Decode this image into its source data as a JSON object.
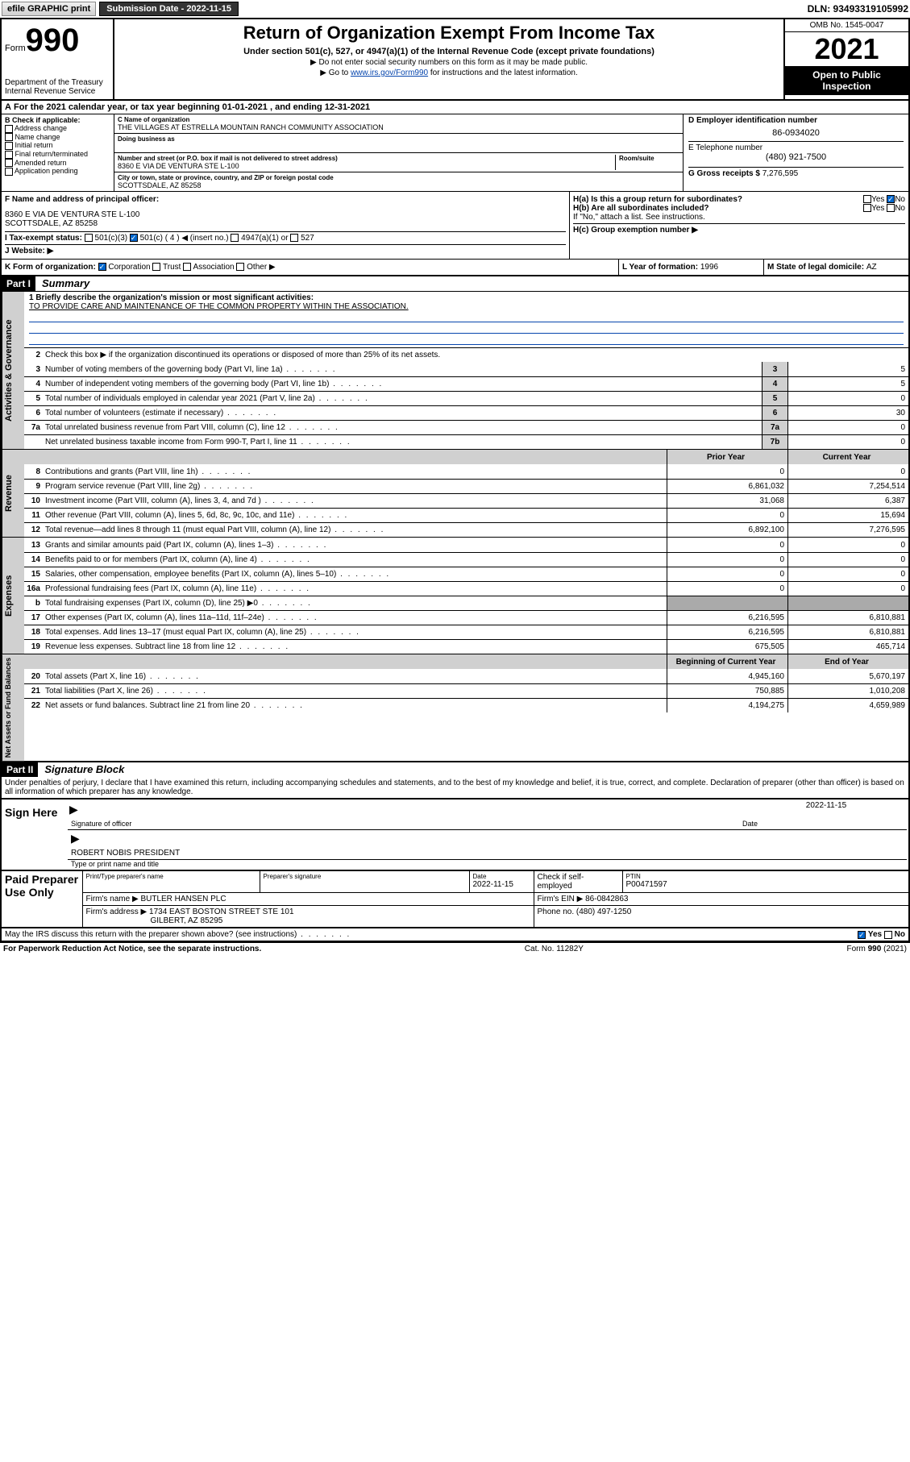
{
  "topbar": {
    "efile": "efile GRAPHIC print",
    "submission_label": "Submission Date - 2022-11-15",
    "dln": "DLN: 93493319105992"
  },
  "header": {
    "form_word": "Form",
    "form_no": "990",
    "dept": "Department of the Treasury",
    "irs": "Internal Revenue Service",
    "title": "Return of Organization Exempt From Income Tax",
    "sub1": "Under section 501(c), 527, or 4947(a)(1) of the Internal Revenue Code (except private foundations)",
    "sub2": "▶ Do not enter social security numbers on this form as it may be made public.",
    "sub3_pre": "▶ Go to ",
    "sub3_link": "www.irs.gov/Form990",
    "sub3_post": " for instructions and the latest information.",
    "omb": "OMB No. 1545-0047",
    "year": "2021",
    "inspect1": "Open to Public",
    "inspect2": "Inspection"
  },
  "sectionA": {
    "text_pre": "For the 2021 calendar year, or tax year beginning ",
    "begin": "01-01-2021",
    "mid": " , and ending ",
    "end": "12-31-2021"
  },
  "colB": {
    "label": "B Check if applicable:",
    "opts": [
      "Address change",
      "Name change",
      "Initial return",
      "Final return/terminated",
      "Amended return",
      "Application pending"
    ]
  },
  "colC": {
    "name_label": "C Name of organization",
    "name": "THE VILLAGES AT ESTRELLA MOUNTAIN RANCH COMMUNITY ASSOCIATION",
    "dba_label": "Doing business as",
    "addr_label": "Number and street (or P.O. box if mail is not delivered to street address)",
    "room_label": "Room/suite",
    "addr": "8360 E VIA DE VENTURA STE L-100",
    "city_label": "City or town, state or province, country, and ZIP or foreign postal code",
    "city": "SCOTTSDALE, AZ  85258"
  },
  "colD": {
    "ein_label": "D Employer identification number",
    "ein": "86-0934020",
    "phone_label": "E Telephone number",
    "phone": "(480) 921-7500",
    "gross_label": "G Gross receipts $ ",
    "gross": "7,276,595"
  },
  "rowF": {
    "label": "F  Name and address of principal officer:",
    "addr1": "8360 E VIA DE VENTURA STE L-100",
    "addr2": "SCOTTSDALE, AZ  85258"
  },
  "rowH": {
    "ha": "H(a)  Is this a group return for subordinates?",
    "yes": "Yes",
    "no": "No",
    "hb": "H(b)  Are all subordinates included?",
    "hb_note": "If \"No,\" attach a list. See instructions.",
    "hc": "H(c)  Group exemption number ▶"
  },
  "rowI": {
    "label": "I   Tax-exempt status:",
    "o1": "501(c)(3)",
    "o2": "501(c) ( 4 ) ◀ (insert no.)",
    "o3": "4947(a)(1) or",
    "o4": "527"
  },
  "rowJ": {
    "label": "J   Website: ▶"
  },
  "rowK": {
    "label": "K Form of organization:",
    "o1": "Corporation",
    "o2": "Trust",
    "o3": "Association",
    "o4": "Other ▶"
  },
  "rowL": {
    "label": "L Year of formation: ",
    "val": "1996"
  },
  "rowM": {
    "label": "M State of legal domicile: ",
    "val": "AZ"
  },
  "part1": {
    "hdr": "Part I",
    "title": "Summary",
    "l1_label": "1  Briefly describe the organization's mission or most significant activities:",
    "l1_text": "TO PROVIDE CARE AND MAINTENANCE OF THE COMMON PROPERTY WITHIN THE ASSOCIATION.",
    "l2": "Check this box ▶        if the organization discontinued its operations or disposed of more than 25% of its net assets.",
    "vtab1": "Activities & Governance",
    "vtab2": "Revenue",
    "vtab3": "Expenses",
    "vtab4": "Net Assets or Fund Balances",
    "prior": "Prior Year",
    "current": "Current Year",
    "begin": "Beginning of Current Year",
    "endyr": "End of Year",
    "lines_gov": [
      {
        "n": "3",
        "t": "Number of voting members of the governing body (Part VI, line 1a)",
        "box": "3",
        "v": "5"
      },
      {
        "n": "4",
        "t": "Number of independent voting members of the governing body (Part VI, line 1b)",
        "box": "4",
        "v": "5"
      },
      {
        "n": "5",
        "t": "Total number of individuals employed in calendar year 2021 (Part V, line 2a)",
        "box": "5",
        "v": "0"
      },
      {
        "n": "6",
        "t": "Total number of volunteers (estimate if necessary)",
        "box": "6",
        "v": "30"
      },
      {
        "n": "7a",
        "t": "Total unrelated business revenue from Part VIII, column (C), line 12",
        "box": "7a",
        "v": "0"
      },
      {
        "n": "",
        "t": "Net unrelated business taxable income from Form 990-T, Part I, line 11",
        "box": "7b",
        "v": "0"
      }
    ],
    "lines_rev": [
      {
        "n": "8",
        "t": "Contributions and grants (Part VIII, line 1h)",
        "p": "0",
        "c": "0"
      },
      {
        "n": "9",
        "t": "Program service revenue (Part VIII, line 2g)",
        "p": "6,861,032",
        "c": "7,254,514"
      },
      {
        "n": "10",
        "t": "Investment income (Part VIII, column (A), lines 3, 4, and 7d )",
        "p": "31,068",
        "c": "6,387"
      },
      {
        "n": "11",
        "t": "Other revenue (Part VIII, column (A), lines 5, 6d, 8c, 9c, 10c, and 11e)",
        "p": "0",
        "c": "15,694"
      },
      {
        "n": "12",
        "t": "Total revenue—add lines 8 through 11 (must equal Part VIII, column (A), line 12)",
        "p": "6,892,100",
        "c": "7,276,595"
      }
    ],
    "lines_exp": [
      {
        "n": "13",
        "t": "Grants and similar amounts paid (Part IX, column (A), lines 1–3)",
        "p": "0",
        "c": "0"
      },
      {
        "n": "14",
        "t": "Benefits paid to or for members (Part IX, column (A), line 4)",
        "p": "0",
        "c": "0"
      },
      {
        "n": "15",
        "t": "Salaries, other compensation, employee benefits (Part IX, column (A), lines 5–10)",
        "p": "0",
        "c": "0"
      },
      {
        "n": "16a",
        "t": "Professional fundraising fees (Part IX, column (A), line 11e)",
        "p": "0",
        "c": "0"
      },
      {
        "n": "b",
        "t": "Total fundraising expenses (Part IX, column (D), line 25) ▶0",
        "p": "",
        "c": "",
        "gray": true
      },
      {
        "n": "17",
        "t": "Other expenses (Part IX, column (A), lines 11a–11d, 11f–24e)",
        "p": "6,216,595",
        "c": "6,810,881"
      },
      {
        "n": "18",
        "t": "Total expenses. Add lines 13–17 (must equal Part IX, column (A), line 25)",
        "p": "6,216,595",
        "c": "6,810,881"
      },
      {
        "n": "19",
        "t": "Revenue less expenses. Subtract line 18 from line 12",
        "p": "675,505",
        "c": "465,714"
      }
    ],
    "lines_net": [
      {
        "n": "20",
        "t": "Total assets (Part X, line 16)",
        "p": "4,945,160",
        "c": "5,670,197"
      },
      {
        "n": "21",
        "t": "Total liabilities (Part X, line 26)",
        "p": "750,885",
        "c": "1,010,208"
      },
      {
        "n": "22",
        "t": "Net assets or fund balances. Subtract line 21 from line 20",
        "p": "4,194,275",
        "c": "4,659,989"
      }
    ]
  },
  "part2": {
    "hdr": "Part II",
    "title": "Signature Block",
    "decl": "Under penalties of perjury, I declare that I have examined this return, including accompanying schedules and statements, and to the best of my knowledge and belief, it is true, correct, and complete. Declaration of preparer (other than officer) is based on all information of which preparer has any knowledge.",
    "sign_here": "Sign Here",
    "sig_officer": "Signature of officer",
    "date_lbl": "Date",
    "date_val": "2022-11-15",
    "officer_name": "ROBERT NOBIS  PRESIDENT",
    "type_name": "Type or print name and title",
    "paid": "Paid Preparer Use Only",
    "prep_name_lbl": "Print/Type preparer's name",
    "prep_sig_lbl": "Preparer's signature",
    "prep_date": "2022-11-15",
    "check_if": "Check        if self-employed",
    "ptin_lbl": "PTIN",
    "ptin": "P00471597",
    "firm_name_lbl": "Firm's name    ▶ ",
    "firm_name": "BUTLER HANSEN PLC",
    "firm_ein_lbl": "Firm's EIN ▶ ",
    "firm_ein": "86-0842863",
    "firm_addr_lbl": "Firm's address ▶ ",
    "firm_addr1": "1734 EAST BOSTON STREET STE 101",
    "firm_addr2": "GILBERT, AZ  85295",
    "firm_phone_lbl": "Phone no. ",
    "firm_phone": "(480) 497-1250",
    "discuss": "May the IRS discuss this return with the preparer shown above? (see instructions)"
  },
  "footer": {
    "left": "For Paperwork Reduction Act Notice, see the separate instructions.",
    "mid": "Cat. No. 11282Y",
    "right": "Form 990 (2021)"
  }
}
